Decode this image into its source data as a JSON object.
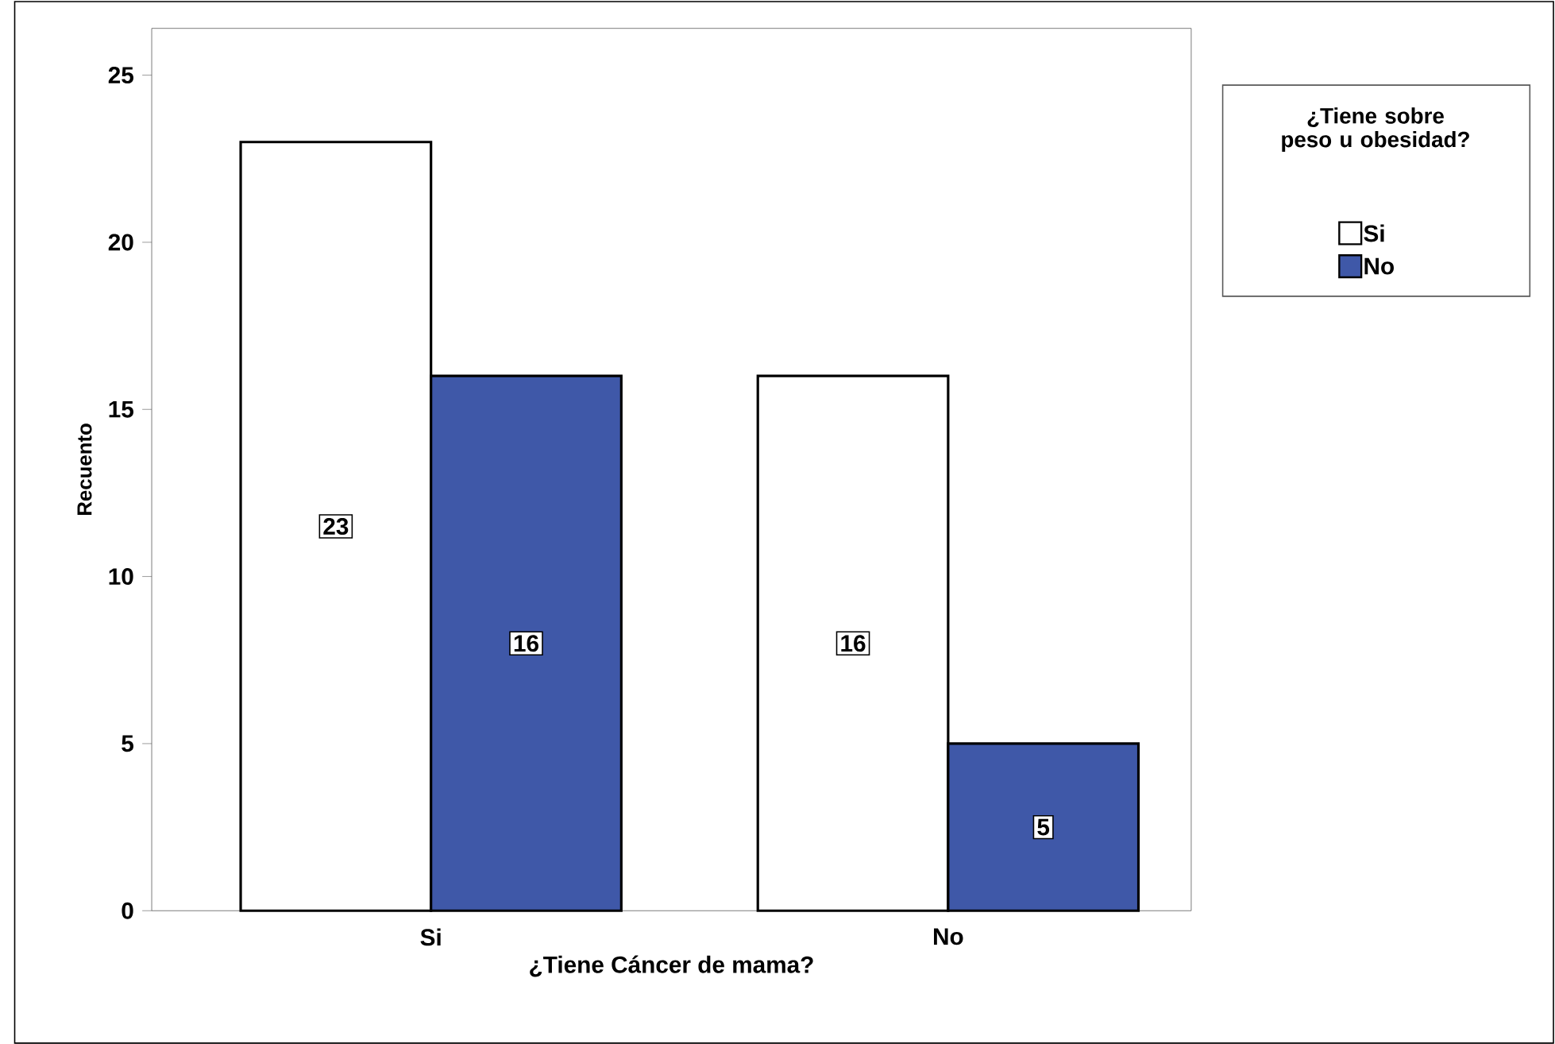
{
  "chart_data": {
    "type": "bar",
    "xlabel": "¿Tiene Cáncer de mama?",
    "ylabel": "Recuento",
    "legend_title": "¿Tiene sobre peso u obesidad?",
    "categories": [
      "Si",
      "No"
    ],
    "series": [
      {
        "name": "Si",
        "color": "#ffffff",
        "values": [
          23,
          16
        ]
      },
      {
        "name": "No",
        "color": "#3f58a8",
        "values": [
          16,
          5
        ]
      }
    ],
    "ylim": [
      0,
      26.4
    ],
    "yticks": [
      0,
      5,
      10,
      15,
      20,
      25
    ],
    "data_labels": true,
    "grid": false,
    "legend": "top right"
  }
}
